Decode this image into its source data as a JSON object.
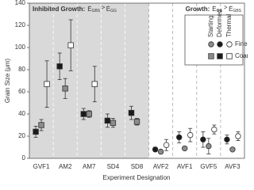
{
  "chart_data": {
    "type": "errorbar_scatter",
    "ylabel": "Grain Size (μm)",
    "xlabel": "Experiment Designation",
    "categories": [
      "GVF1",
      "AM2",
      "AM7",
      "SD4",
      "SD8",
      "AVF2",
      "AVF1",
      "GVF5",
      "AVF3"
    ],
    "ylim": [
      0,
      140
    ],
    "yticks": [
      0,
      20,
      40,
      60,
      80,
      100,
      120,
      140
    ],
    "shaded_range": [
      0,
      4
    ],
    "shade_color": "#d9d9d9",
    "annotations": [
      {
        "label": "Inhibited Growth:",
        "lhs": "Ė",
        "lhs_sub": "GBS",
        "op": ">",
        "rhs": "Ė",
        "rhs_sub": "GG"
      },
      {
        "label": "Growth:",
        "lhs": "Ė",
        "lhs_sub": "GG",
        "op": ">",
        "rhs": "Ė",
        "rhs_sub": "GBS"
      }
    ],
    "legend": {
      "columns": [
        "Starting",
        "Deformed",
        "Thermal"
      ],
      "rows": [
        "Fine",
        "Coarse"
      ]
    },
    "series": [
      {
        "name": "Starting Fine",
        "color": "#8c8c8c",
        "marker": "circle",
        "values": [
          null,
          null,
          null,
          null,
          null,
          6,
          9,
          11,
          8
        ],
        "errors": [
          null,
          null,
          null,
          null,
          null,
          0,
          0,
          7,
          0
        ]
      },
      {
        "name": "Deformed Fine",
        "color": "#1a1a1a",
        "marker": "circle",
        "values": [
          null,
          null,
          null,
          null,
          null,
          8,
          19,
          17,
          17
        ],
        "errors": [
          null,
          null,
          null,
          null,
          null,
          2,
          5,
          7,
          4
        ]
      },
      {
        "name": "Thermal Fine",
        "color": "#ffffff",
        "marker": "circle",
        "values": [
          null,
          null,
          null,
          null,
          null,
          12,
          21,
          26,
          20
        ],
        "errors": [
          null,
          null,
          null,
          null,
          null,
          5,
          6,
          4,
          4
        ]
      },
      {
        "name": "Starting Coarse",
        "color": "#8c8c8c",
        "marker": "square",
        "values": [
          30,
          63,
          40,
          32,
          33,
          null,
          null,
          null,
          null
        ],
        "errors": [
          5,
          9,
          3,
          4,
          3,
          null,
          null,
          null,
          null
        ]
      },
      {
        "name": "Deformed Coarse",
        "color": "#1a1a1a",
        "marker": "square",
        "values": [
          24,
          83,
          40,
          34,
          41,
          null,
          null,
          null,
          null
        ],
        "errors": [
          5,
          12,
          5,
          6,
          6,
          null,
          null,
          null,
          null
        ]
      },
      {
        "name": "Thermal Coarse",
        "color": "#ffffff",
        "marker": "square",
        "values": [
          67,
          102,
          67,
          null,
          null,
          null,
          null,
          null,
          null
        ],
        "errors": [
          21,
          23,
          16,
          null,
          null,
          null,
          null,
          null,
          null
        ]
      }
    ]
  }
}
